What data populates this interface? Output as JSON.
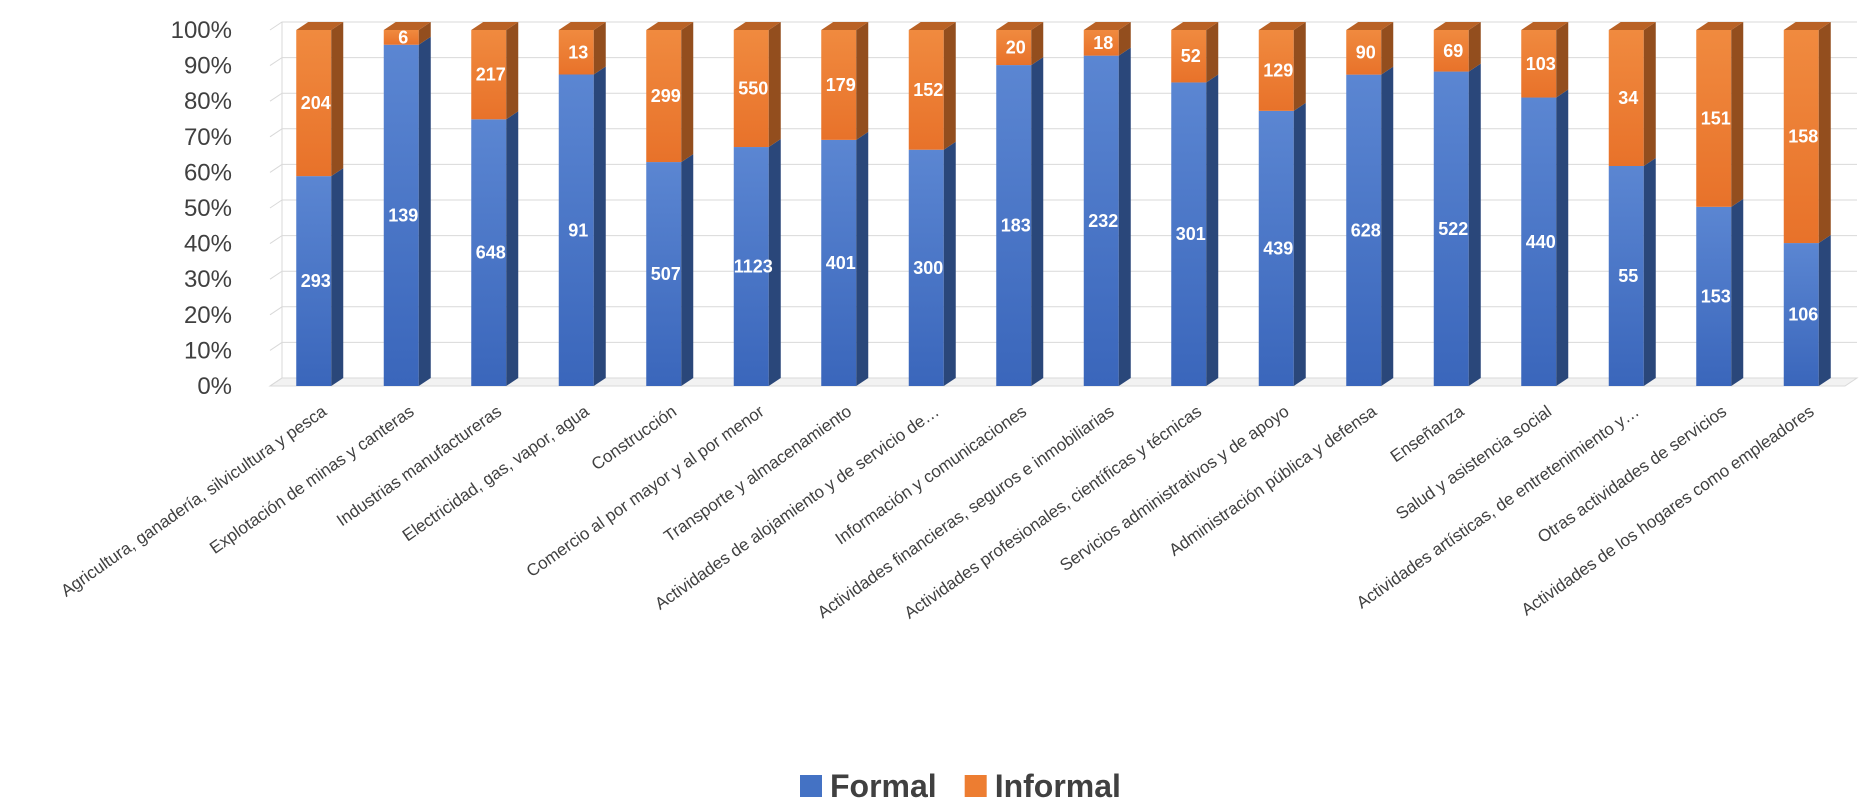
{
  "chart_data": {
    "type": "bar",
    "stacked": "percent",
    "categories": [
      "Agricultura, ganadería, silvicultura y pesca",
      "Explotación de minas y canteras",
      "Industrias manufactureras",
      "Electricidad, gas, vapor, agua",
      "Construcción",
      "Comercio al por mayor y al por menor",
      "Transporte y almacenamiento",
      "Actividades de alojamiento y de servicio de…",
      "Información y comunicaciones",
      "Actividades financieras, seguros e inmobiliarias",
      "Actividades profesionales, científicas y técnicas",
      "Servicios administrativos y de apoyo",
      "Administración pública y defensa",
      "Enseñanza",
      "Salud y asistencia social",
      "Actividades artísticas, de entretenimiento y…",
      "Otras actividades de servicios",
      "Actividades de los hogares como empleadores"
    ],
    "series": [
      {
        "name": "Formal",
        "color": "#4472C4",
        "values": [
          293,
          139,
          648,
          91,
          507,
          1123,
          401,
          300,
          183,
          232,
          301,
          439,
          628,
          522,
          440,
          55,
          153,
          106
        ]
      },
      {
        "name": "Informal",
        "color": "#ED7D31",
        "values": [
          204,
          6,
          217,
          13,
          299,
          550,
          179,
          152,
          20,
          18,
          52,
          129,
          90,
          69,
          103,
          34,
          151,
          158
        ]
      }
    ],
    "yticks": [
      "0%",
      "10%",
      "20%",
      "30%",
      "40%",
      "50%",
      "60%",
      "70%",
      "80%",
      "90%",
      "100%"
    ],
    "ylim": [
      0,
      100
    ],
    "grid": true,
    "legend_position": "bottom",
    "title": "",
    "xlabel": "",
    "ylabel": ""
  }
}
